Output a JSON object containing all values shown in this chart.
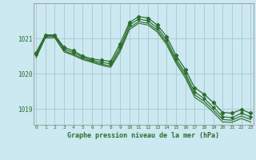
{
  "title": "Graphe pression niveau de la mer (hPa)",
  "bg_color": "#cce8f0",
  "grid_color": "#aacdd8",
  "line_color": "#2d6e2d",
  "xlim": [
    -0.3,
    23.3
  ],
  "ylim": [
    1018.55,
    1022.0
  ],
  "yticks": [
    1019,
    1020,
    1021
  ],
  "xticks": [
    0,
    1,
    2,
    3,
    4,
    5,
    6,
    7,
    8,
    9,
    10,
    11,
    12,
    13,
    14,
    15,
    16,
    17,
    18,
    19,
    20,
    21,
    22,
    23
  ],
  "line1": [
    1020.6,
    1021.1,
    1021.1,
    1020.75,
    1020.65,
    1020.5,
    1020.42,
    1020.38,
    1020.35,
    1020.85,
    1021.45,
    1021.62,
    1021.58,
    1021.38,
    1021.05,
    1020.52,
    1020.12,
    1019.6,
    1019.42,
    1019.18,
    1018.9,
    1018.88,
    1018.98,
    1018.88
  ],
  "line2": [
    1020.55,
    1021.08,
    1021.08,
    1020.7,
    1020.6,
    1020.47,
    1020.38,
    1020.32,
    1020.28,
    1020.75,
    1021.38,
    1021.55,
    1021.5,
    1021.3,
    1020.95,
    1020.42,
    1020.02,
    1019.48,
    1019.3,
    1019.05,
    1018.78,
    1018.75,
    1018.88,
    1018.78
  ],
  "line3": [
    1020.5,
    1021.05,
    1021.05,
    1020.65,
    1020.55,
    1020.43,
    1020.35,
    1020.27,
    1020.22,
    1020.68,
    1021.3,
    1021.48,
    1021.43,
    1021.23,
    1020.88,
    1020.35,
    1019.95,
    1019.4,
    1019.22,
    1018.97,
    1018.7,
    1018.68,
    1018.8,
    1018.7
  ],
  "line4": [
    1020.45,
    1021.02,
    1021.02,
    1020.62,
    1020.52,
    1020.4,
    1020.32,
    1020.24,
    1020.18,
    1020.62,
    1021.25,
    1021.43,
    1021.38,
    1021.18,
    1020.82,
    1020.3,
    1019.88,
    1019.33,
    1019.15,
    1018.9,
    1018.63,
    1018.62,
    1018.73,
    1018.63
  ]
}
